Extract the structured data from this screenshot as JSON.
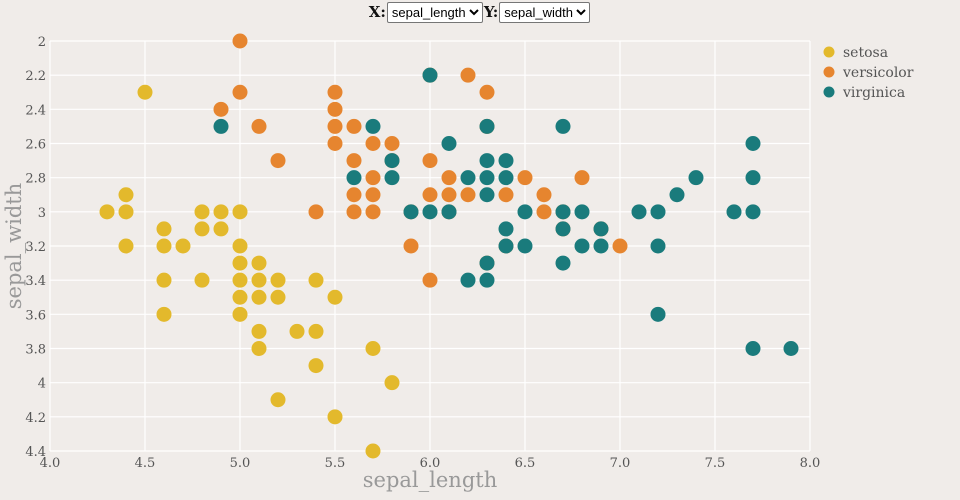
{
  "controls": {
    "x_label": "X:",
    "y_label": "Y:",
    "x_selected": "sepal_length",
    "y_selected": "sepal_width"
  },
  "chart_data": {
    "type": "scatter",
    "xlabel": "sepal_length",
    "ylabel": "sepal_width",
    "xlim": [
      4.0,
      8.0
    ],
    "ylim": [
      2.0,
      4.4
    ],
    "y_inverted": true,
    "xticks": [
      "4.0",
      "4.5",
      "5.0",
      "5.5",
      "6.0",
      "6.5",
      "7.0",
      "7.5",
      "8.0"
    ],
    "yticks": [
      "2",
      "2.2",
      "2.4",
      "2.6",
      "2.8",
      "3",
      "3.2",
      "3.4",
      "3.6",
      "3.8",
      "4",
      "4.2",
      "4.4"
    ],
    "grid": true,
    "legend_position": "top-right",
    "series": [
      {
        "name": "setosa",
        "color": "#e3b92c",
        "points": [
          [
            4.5,
            2.3
          ],
          [
            4.3,
            3.0
          ],
          [
            4.4,
            2.9
          ],
          [
            4.4,
            3.0
          ],
          [
            4.4,
            3.2
          ],
          [
            4.6,
            3.1
          ],
          [
            4.6,
            3.2
          ],
          [
            4.6,
            3.4
          ],
          [
            4.6,
            3.6
          ],
          [
            4.7,
            3.2
          ],
          [
            4.8,
            3.0
          ],
          [
            4.8,
            3.1
          ],
          [
            4.8,
            3.4
          ],
          [
            4.9,
            3.0
          ],
          [
            4.9,
            3.1
          ],
          [
            5.0,
            3.0
          ],
          [
            5.0,
            3.2
          ],
          [
            5.0,
            3.3
          ],
          [
            5.0,
            3.4
          ],
          [
            5.0,
            3.5
          ],
          [
            5.0,
            3.6
          ],
          [
            5.1,
            3.3
          ],
          [
            5.1,
            3.4
          ],
          [
            5.1,
            3.5
          ],
          [
            5.1,
            3.7
          ],
          [
            5.1,
            3.8
          ],
          [
            5.2,
            3.4
          ],
          [
            5.2,
            3.5
          ],
          [
            5.2,
            4.1
          ],
          [
            5.3,
            3.7
          ],
          [
            5.4,
            3.4
          ],
          [
            5.4,
            3.7
          ],
          [
            5.4,
            3.9
          ],
          [
            5.5,
            3.5
          ],
          [
            5.5,
            4.2
          ],
          [
            5.7,
            3.8
          ],
          [
            5.7,
            4.4
          ],
          [
            5.8,
            4.0
          ]
        ]
      },
      {
        "name": "versicolor",
        "color": "#e6852f",
        "points": [
          [
            5.0,
            2.0
          ],
          [
            5.0,
            2.3
          ],
          [
            4.9,
            2.4
          ],
          [
            5.1,
            2.5
          ],
          [
            5.2,
            2.7
          ],
          [
            5.4,
            3.0
          ],
          [
            5.5,
            2.3
          ],
          [
            5.5,
            2.4
          ],
          [
            5.5,
            2.5
          ],
          [
            5.5,
            2.6
          ],
          [
            5.6,
            2.5
          ],
          [
            5.6,
            2.7
          ],
          [
            5.6,
            2.9
          ],
          [
            5.6,
            3.0
          ],
          [
            5.7,
            2.6
          ],
          [
            5.7,
            2.8
          ],
          [
            5.7,
            2.9
          ],
          [
            5.7,
            3.0
          ],
          [
            5.8,
            2.6
          ],
          [
            5.8,
            2.7
          ],
          [
            5.9,
            3.0
          ],
          [
            5.9,
            3.2
          ],
          [
            6.0,
            2.7
          ],
          [
            6.0,
            2.9
          ],
          [
            6.0,
            3.4
          ],
          [
            6.0,
            2.2
          ],
          [
            6.1,
            2.8
          ],
          [
            6.1,
            2.9
          ],
          [
            6.1,
            3.0
          ],
          [
            6.2,
            2.2
          ],
          [
            6.2,
            2.9
          ],
          [
            6.3,
            2.3
          ],
          [
            6.3,
            2.5
          ],
          [
            6.3,
            3.3
          ],
          [
            6.4,
            2.9
          ],
          [
            6.4,
            3.2
          ],
          [
            6.5,
            2.8
          ],
          [
            6.6,
            2.9
          ],
          [
            6.6,
            3.0
          ],
          [
            6.7,
            3.0
          ],
          [
            6.7,
            3.1
          ],
          [
            6.8,
            2.8
          ],
          [
            6.9,
            3.1
          ],
          [
            7.0,
            3.2
          ]
        ]
      },
      {
        "name": "virginica",
        "color": "#1a7b7c",
        "points": [
          [
            4.9,
            2.5
          ],
          [
            5.6,
            2.8
          ],
          [
            5.7,
            2.5
          ],
          [
            5.8,
            2.7
          ],
          [
            5.8,
            2.8
          ],
          [
            5.9,
            3.0
          ],
          [
            6.0,
            2.2
          ],
          [
            6.0,
            3.0
          ],
          [
            6.1,
            2.6
          ],
          [
            6.1,
            3.0
          ],
          [
            6.2,
            2.8
          ],
          [
            6.2,
            3.4
          ],
          [
            6.3,
            2.5
          ],
          [
            6.3,
            2.7
          ],
          [
            6.3,
            2.8
          ],
          [
            6.3,
            2.9
          ],
          [
            6.3,
            3.3
          ],
          [
            6.3,
            3.4
          ],
          [
            6.4,
            2.7
          ],
          [
            6.4,
            2.8
          ],
          [
            6.4,
            3.1
          ],
          [
            6.4,
            3.2
          ],
          [
            6.5,
            3.0
          ],
          [
            6.5,
            3.2
          ],
          [
            6.7,
            2.5
          ],
          [
            6.7,
            3.0
          ],
          [
            6.7,
            3.1
          ],
          [
            6.7,
            3.3
          ],
          [
            6.8,
            3.0
          ],
          [
            6.8,
            3.2
          ],
          [
            6.9,
            3.1
          ],
          [
            6.9,
            3.2
          ],
          [
            7.1,
            3.0
          ],
          [
            7.2,
            3.0
          ],
          [
            7.2,
            3.2
          ],
          [
            7.2,
            3.6
          ],
          [
            7.3,
            2.9
          ],
          [
            7.4,
            2.8
          ],
          [
            7.6,
            3.0
          ],
          [
            7.7,
            2.6
          ],
          [
            7.7,
            2.8
          ],
          [
            7.7,
            3.0
          ],
          [
            7.7,
            3.8
          ],
          [
            7.9,
            3.8
          ]
        ]
      }
    ]
  }
}
